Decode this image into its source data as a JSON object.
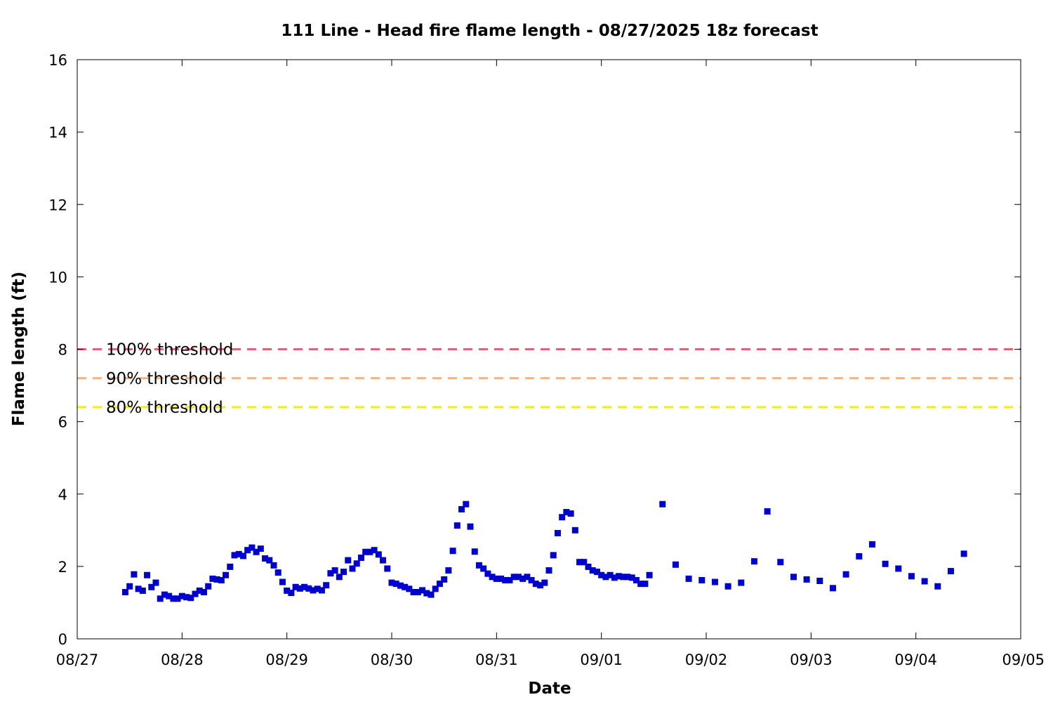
{
  "chart_data": {
    "type": "scatter",
    "title": "111 Line - Head fire flame length - 08/27/2025 18z forecast",
    "xlabel": "Date",
    "ylabel": "Flame length (ft)",
    "xlim": [
      "2025-08-27 00:00",
      "2025-09-05 00:00"
    ],
    "ylim": [
      0,
      16
    ],
    "x_ticks": [
      "08/27",
      "08/28",
      "08/29",
      "08/30",
      "08/31",
      "09/01",
      "09/02",
      "09/03",
      "09/04",
      "09/05"
    ],
    "y_ticks": [
      0,
      2,
      4,
      6,
      8,
      10,
      12,
      14,
      16
    ],
    "grid": false,
    "legend": "left",
    "thresholds": [
      {
        "name": "100% threshold",
        "value": 8.0,
        "color": "#e06377"
      },
      {
        "name": "90% threshold",
        "value": 7.2,
        "color": "#f5b27a"
      },
      {
        "name": "80% threshold",
        "value": 6.4,
        "color": "#f0f000"
      }
    ],
    "series": [
      {
        "color": "#0000cc",
        "points": [
          [
            "2025-08-27 11:00",
            1.29
          ],
          [
            "2025-08-27 12:00",
            1.45
          ],
          [
            "2025-08-27 13:00",
            1.78
          ],
          [
            "2025-08-27 14:00",
            1.38
          ],
          [
            "2025-08-27 15:00",
            1.33
          ],
          [
            "2025-08-27 16:00",
            1.76
          ],
          [
            "2025-08-27 17:00",
            1.43
          ],
          [
            "2025-08-27 18:00",
            1.55
          ],
          [
            "2025-08-27 19:00",
            1.11
          ],
          [
            "2025-08-27 20:00",
            1.22
          ],
          [
            "2025-08-27 21:00",
            1.18
          ],
          [
            "2025-08-27 22:00",
            1.11
          ],
          [
            "2025-08-27 23:00",
            1.11
          ],
          [
            "2025-08-28 00:00",
            1.18
          ],
          [
            "2025-08-28 01:00",
            1.15
          ],
          [
            "2025-08-28 02:00",
            1.13
          ],
          [
            "2025-08-28 03:00",
            1.24
          ],
          [
            "2025-08-28 04:00",
            1.33
          ],
          [
            "2025-08-28 05:00",
            1.29
          ],
          [
            "2025-08-28 06:00",
            1.45
          ],
          [
            "2025-08-28 07:00",
            1.66
          ],
          [
            "2025-08-28 08:00",
            1.64
          ],
          [
            "2025-08-28 09:00",
            1.62
          ],
          [
            "2025-08-28 10:00",
            1.76
          ],
          [
            "2025-08-28 11:00",
            1.99
          ],
          [
            "2025-08-28 12:00",
            2.31
          ],
          [
            "2025-08-28 13:00",
            2.34
          ],
          [
            "2025-08-28 14:00",
            2.29
          ],
          [
            "2025-08-28 15:00",
            2.45
          ],
          [
            "2025-08-28 16:00",
            2.52
          ],
          [
            "2025-08-28 17:00",
            2.4
          ],
          [
            "2025-08-28 18:00",
            2.49
          ],
          [
            "2025-08-28 19:00",
            2.22
          ],
          [
            "2025-08-28 20:00",
            2.17
          ],
          [
            "2025-08-28 21:00",
            2.03
          ],
          [
            "2025-08-28 22:00",
            1.83
          ],
          [
            "2025-08-28 23:00",
            1.57
          ],
          [
            "2025-08-29 00:00",
            1.33
          ],
          [
            "2025-08-29 01:00",
            1.27
          ],
          [
            "2025-08-29 02:00",
            1.43
          ],
          [
            "2025-08-29 03:00",
            1.39
          ],
          [
            "2025-08-29 04:00",
            1.43
          ],
          [
            "2025-08-29 05:00",
            1.39
          ],
          [
            "2025-08-29 06:00",
            1.34
          ],
          [
            "2025-08-29 07:00",
            1.38
          ],
          [
            "2025-08-29 08:00",
            1.34
          ],
          [
            "2025-08-29 09:00",
            1.48
          ],
          [
            "2025-08-29 10:00",
            1.81
          ],
          [
            "2025-08-29 11:00",
            1.89
          ],
          [
            "2025-08-29 12:00",
            1.71
          ],
          [
            "2025-08-29 13:00",
            1.85
          ],
          [
            "2025-08-29 14:00",
            2.17
          ],
          [
            "2025-08-29 15:00",
            1.94
          ],
          [
            "2025-08-29 16:00",
            2.08
          ],
          [
            "2025-08-29 17:00",
            2.24
          ],
          [
            "2025-08-29 18:00",
            2.4
          ],
          [
            "2025-08-29 19:00",
            2.4
          ],
          [
            "2025-08-29 20:00",
            2.45
          ],
          [
            "2025-08-29 21:00",
            2.33
          ],
          [
            "2025-08-29 22:00",
            2.17
          ],
          [
            "2025-08-29 23:00",
            1.94
          ],
          [
            "2025-08-30 00:00",
            1.55
          ],
          [
            "2025-08-30 01:00",
            1.52
          ],
          [
            "2025-08-30 02:00",
            1.47
          ],
          [
            "2025-08-30 03:00",
            1.43
          ],
          [
            "2025-08-30 04:00",
            1.38
          ],
          [
            "2025-08-30 05:00",
            1.29
          ],
          [
            "2025-08-30 06:00",
            1.29
          ],
          [
            "2025-08-30 07:00",
            1.34
          ],
          [
            "2025-08-30 08:00",
            1.26
          ],
          [
            "2025-08-30 09:00",
            1.22
          ],
          [
            "2025-08-30 10:00",
            1.38
          ],
          [
            "2025-08-30 11:00",
            1.52
          ],
          [
            "2025-08-30 12:00",
            1.64
          ],
          [
            "2025-08-30 13:00",
            1.89
          ],
          [
            "2025-08-30 14:00",
            2.43
          ],
          [
            "2025-08-30 15:00",
            3.13
          ],
          [
            "2025-08-30 16:00",
            3.58
          ],
          [
            "2025-08-30 17:00",
            3.72
          ],
          [
            "2025-08-30 18:00",
            3.1
          ],
          [
            "2025-08-30 19:00",
            2.41
          ],
          [
            "2025-08-30 20:00",
            2.03
          ],
          [
            "2025-08-30 21:00",
            1.94
          ],
          [
            "2025-08-30 22:00",
            1.8
          ],
          [
            "2025-08-30 23:00",
            1.71
          ],
          [
            "2025-08-31 00:00",
            1.66
          ],
          [
            "2025-08-31 01:00",
            1.66
          ],
          [
            "2025-08-31 02:00",
            1.62
          ],
          [
            "2025-08-31 03:00",
            1.62
          ],
          [
            "2025-08-31 04:00",
            1.71
          ],
          [
            "2025-08-31 05:00",
            1.71
          ],
          [
            "2025-08-31 06:00",
            1.66
          ],
          [
            "2025-08-31 07:00",
            1.71
          ],
          [
            "2025-08-31 08:00",
            1.62
          ],
          [
            "2025-08-31 09:00",
            1.52
          ],
          [
            "2025-08-31 10:00",
            1.48
          ],
          [
            "2025-08-31 11:00",
            1.55
          ],
          [
            "2025-08-31 12:00",
            1.89
          ],
          [
            "2025-08-31 13:00",
            2.31
          ],
          [
            "2025-08-31 14:00",
            2.92
          ],
          [
            "2025-08-31 15:00",
            3.36
          ],
          [
            "2025-08-31 16:00",
            3.5
          ],
          [
            "2025-08-31 17:00",
            3.46
          ],
          [
            "2025-08-31 18:00",
            3.0
          ],
          [
            "2025-08-31 19:00",
            2.12
          ],
          [
            "2025-08-31 20:00",
            2.12
          ],
          [
            "2025-08-31 21:00",
            1.99
          ],
          [
            "2025-08-31 22:00",
            1.89
          ],
          [
            "2025-08-31 23:00",
            1.85
          ],
          [
            "2025-09-01 00:00",
            1.76
          ],
          [
            "2025-09-01 01:00",
            1.71
          ],
          [
            "2025-09-01 02:00",
            1.76
          ],
          [
            "2025-09-01 03:00",
            1.69
          ],
          [
            "2025-09-01 04:00",
            1.73
          ],
          [
            "2025-09-01 05:00",
            1.71
          ],
          [
            "2025-09-01 06:00",
            1.71
          ],
          [
            "2025-09-01 07:00",
            1.69
          ],
          [
            "2025-09-01 08:00",
            1.62
          ],
          [
            "2025-09-01 09:00",
            1.52
          ],
          [
            "2025-09-01 10:00",
            1.52
          ],
          [
            "2025-09-01 11:00",
            1.76
          ],
          [
            "2025-09-01 14:00",
            3.72
          ],
          [
            "2025-09-01 17:00",
            2.05
          ],
          [
            "2025-09-01 20:00",
            1.66
          ],
          [
            "2025-09-01 23:00",
            1.62
          ],
          [
            "2025-09-02 02:00",
            1.57
          ],
          [
            "2025-09-02 05:00",
            1.45
          ],
          [
            "2025-09-02 08:00",
            1.55
          ],
          [
            "2025-09-02 11:00",
            2.14
          ],
          [
            "2025-09-02 14:00",
            3.52
          ],
          [
            "2025-09-02 17:00",
            2.12
          ],
          [
            "2025-09-02 20:00",
            1.71
          ],
          [
            "2025-09-02 23:00",
            1.64
          ],
          [
            "2025-09-03 02:00",
            1.6
          ],
          [
            "2025-09-03 05:00",
            1.4
          ],
          [
            "2025-09-03 08:00",
            1.78
          ],
          [
            "2025-09-03 11:00",
            2.28
          ],
          [
            "2025-09-03 14:00",
            2.61
          ],
          [
            "2025-09-03 17:00",
            2.07
          ],
          [
            "2025-09-03 20:00",
            1.94
          ],
          [
            "2025-09-03 23:00",
            1.73
          ],
          [
            "2025-09-04 02:00",
            1.59
          ],
          [
            "2025-09-04 05:00",
            1.45
          ],
          [
            "2025-09-04 08:00",
            1.87
          ],
          [
            "2025-09-04 11:00",
            2.35
          ]
        ]
      }
    ]
  }
}
